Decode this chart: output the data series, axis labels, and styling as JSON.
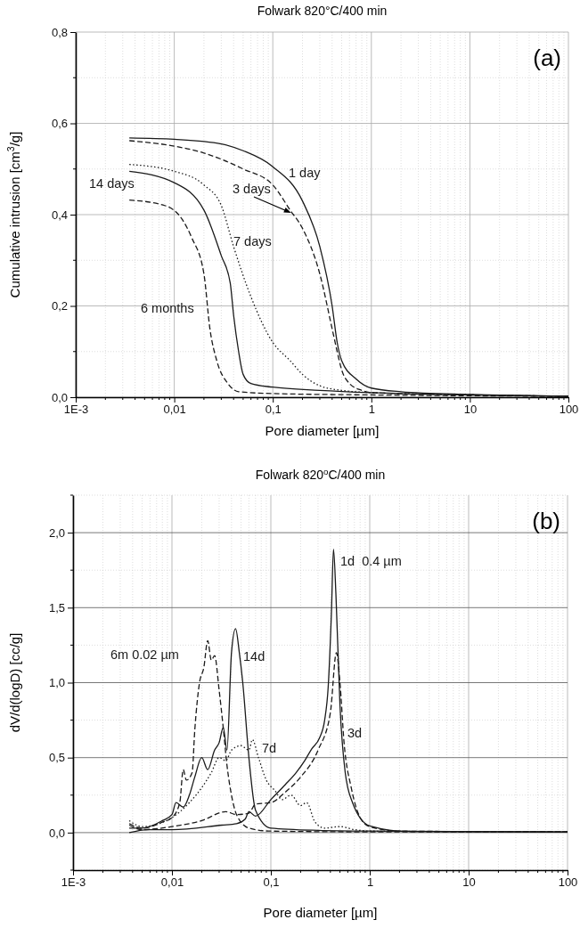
{
  "chart_data": [
    {
      "type": "line",
      "title": "Folwark 820°C/400 min",
      "xlabel": "Pore diameter [µm]",
      "ylabel": "Cumulative intrusion [cm$^{3}$/g]",
      "log": "x",
      "grid": true,
      "xlim": [
        0.001,
        100
      ],
      "ylim": [
        0,
        0.8
      ],
      "xticks": [
        {
          "value": 0.001,
          "label": "1E-3"
        },
        {
          "value": 0.01,
          "label": "0,01"
        },
        {
          "value": 0.1,
          "label": "0,1"
        },
        1,
        10,
        100
      ],
      "yticks": [
        {
          "value": 0,
          "label": "0,0"
        },
        {
          "value": 0.2,
          "label": "0,2"
        },
        {
          "value": 0.4,
          "label": "0,4"
        },
        {
          "value": 0.6,
          "label": "0,6"
        },
        {
          "value": 0.8,
          "label": "0,8"
        }
      ],
      "annotations": [
        "(a)"
      ],
      "series": [
        {
          "name": "1 day",
          "color": "#1a1a1a",
          "line_style": "solid",
          "x": [
            0.0035,
            0.01,
            0.03,
            0.05,
            0.1,
            0.2,
            0.3,
            0.4,
            0.45,
            0.5,
            0.7,
            1,
            2,
            10,
            100
          ],
          "values": [
            0.568,
            0.565,
            0.555,
            0.54,
            0.505,
            0.43,
            0.33,
            0.2,
            0.12,
            0.08,
            0.04,
            0.02,
            0.012,
            0.006,
            0.002
          ]
        },
        {
          "name": "3 days",
          "color": "#1a1a1a",
          "line_style": "dashed",
          "x": [
            0.0035,
            0.01,
            0.02,
            0.05,
            0.1,
            0.15,
            0.2,
            0.3,
            0.4,
            0.45,
            0.5,
            0.6,
            0.8,
            1,
            10,
            100
          ],
          "values": [
            0.562,
            0.55,
            0.535,
            0.5,
            0.465,
            0.41,
            0.37,
            0.27,
            0.15,
            0.1,
            0.06,
            0.03,
            0.015,
            0.01,
            0.005,
            0.002
          ]
        },
        {
          "name": "7 days",
          "color": "#1a1a1a",
          "line_style": "dotted",
          "x": [
            0.0035,
            0.01,
            0.02,
            0.03,
            0.04,
            0.06,
            0.1,
            0.15,
            0.2,
            0.3,
            0.5,
            1,
            10,
            100
          ],
          "values": [
            0.51,
            0.495,
            0.465,
            0.42,
            0.33,
            0.22,
            0.12,
            0.08,
            0.05,
            0.025,
            0.015,
            0.01,
            0.005,
            0.002
          ]
        },
        {
          "name": "14 days",
          "color": "#1a1a1a",
          "line_style": "solid",
          "x": [
            0.0035,
            0.01,
            0.02,
            0.03,
            0.037,
            0.04,
            0.045,
            0.05,
            0.06,
            0.1,
            0.3,
            1,
            10,
            100
          ],
          "values": [
            0.495,
            0.47,
            0.41,
            0.31,
            0.25,
            0.18,
            0.1,
            0.05,
            0.03,
            0.022,
            0.015,
            0.01,
            0.005,
            0.002
          ]
        },
        {
          "name": "6 months",
          "color": "#1a1a1a",
          "line_style": "dashed",
          "x": [
            0.0035,
            0.008,
            0.012,
            0.015,
            0.02,
            0.023,
            0.027,
            0.035,
            0.045,
            0.1,
            1,
            100
          ],
          "values": [
            0.432,
            0.42,
            0.39,
            0.35,
            0.27,
            0.15,
            0.08,
            0.03,
            0.012,
            0.008,
            0.005,
            0.002
          ]
        }
      ]
    },
    {
      "type": "line",
      "title": "Folwark 820$^{o}$C/400 min",
      "xlabel": "Pore diameter [µm]",
      "ylabel": "dV/d(logD) [cc/g]",
      "log": "x",
      "grid": true,
      "xlim": [
        0.001,
        100
      ],
      "ylim": [
        -0.25,
        2.25
      ],
      "xticks": [
        {
          "value": 0.001,
          "label": "1E-3"
        },
        {
          "value": 0.01,
          "label": "0,01"
        },
        {
          "value": 0.1,
          "label": "0,1"
        },
        1,
        10,
        100
      ],
      "yticks": [
        {
          "value": 0,
          "label": "0,0"
        },
        {
          "value": 0.5,
          "label": "0,5"
        },
        {
          "value": 1,
          "label": "1,0"
        },
        {
          "value": 1.5,
          "label": "1,5"
        },
        {
          "value": 2,
          "label": "2,0"
        }
      ],
      "annotations": [
        "(b)"
      ],
      "series": [
        {
          "name": "1d  0.4 µm",
          "color": "#1a1a1a",
          "line_style": "solid",
          "x": [
            0.0037,
            0.0057,
            0.01,
            0.032,
            0.045,
            0.055,
            0.06,
            0.07,
            0.1,
            0.14,
            0.18,
            0.22,
            0.26,
            0.31,
            0.35,
            0.38,
            0.41,
            0.43,
            0.455,
            0.5,
            0.565,
            0.67,
            1,
            2.5,
            100
          ],
          "values": [
            0,
            0.02,
            0.02,
            0.05,
            0.06,
            0.09,
            0.14,
            0.11,
            0.22,
            0.32,
            0.4,
            0.48,
            0.56,
            0.63,
            0.75,
            0.97,
            1.47,
            1.89,
            1.59,
            0.85,
            0.4,
            0.2,
            0.045,
            0.007,
            0.005
          ]
        },
        {
          "name": "3d",
          "color": "#1a1a1a",
          "line_style": "dashed",
          "x": [
            0.0037,
            0.005,
            0.01,
            0.02,
            0.035,
            0.045,
            0.06,
            0.07,
            0.1,
            0.14,
            0.2,
            0.3,
            0.4,
            0.46,
            0.5,
            0.55,
            0.65,
            0.8,
            1,
            2,
            100
          ],
          "values": [
            0.05,
            0.02,
            0.04,
            0.08,
            0.14,
            0.12,
            0.13,
            0.19,
            0.2,
            0.27,
            0.37,
            0.55,
            0.8,
            1.2,
            1.0,
            0.6,
            0.3,
            0.1,
            0.04,
            0.01,
            0.005
          ]
        },
        {
          "name": "14d",
          "color": "#1a1a1a",
          "line_style": "solid",
          "x": [
            0.0037,
            0.005,
            0.008,
            0.01,
            0.011,
            0.013,
            0.015,
            0.017,
            0.02,
            0.023,
            0.027,
            0.03,
            0.033,
            0.036,
            0.04,
            0.044,
            0.048,
            0.052,
            0.06,
            0.07,
            0.1,
            0.3,
            1,
            100
          ],
          "values": [
            0.03,
            0.03,
            0.08,
            0.12,
            0.2,
            0.17,
            0.25,
            0.37,
            0.5,
            0.42,
            0.55,
            0.6,
            0.7,
            0.55,
            1.2,
            1.36,
            1.2,
            1.0,
            0.5,
            0.15,
            0.03,
            0.015,
            0.01,
            0.005
          ]
        },
        {
          "name": "7d",
          "color": "#1a1a1a",
          "line_style": "dotted",
          "x": [
            0.0037,
            0.005,
            0.01,
            0.015,
            0.02,
            0.025,
            0.03,
            0.035,
            0.04,
            0.05,
            0.06,
            0.065,
            0.075,
            0.09,
            0.11,
            0.13,
            0.16,
            0.2,
            0.23,
            0.28,
            0.35,
            0.5,
            0.7,
            1,
            100
          ],
          "values": [
            0.08,
            0.04,
            0.1,
            0.2,
            0.3,
            0.4,
            0.5,
            0.48,
            0.55,
            0.58,
            0.55,
            0.62,
            0.5,
            0.35,
            0.28,
            0.22,
            0.25,
            0.18,
            0.2,
            0.07,
            0.03,
            0.04,
            0.02,
            0.01,
            0.005
          ]
        },
        {
          "name": "6m 0.02 µm",
          "color": "#1a1a1a",
          "line_style": "dashed",
          "x": [
            0.0037,
            0.005,
            0.008,
            0.01,
            0.012,
            0.013,
            0.014,
            0.016,
            0.017,
            0.019,
            0.021,
            0.023,
            0.025,
            0.027,
            0.03,
            0.033,
            0.036,
            0.04,
            0.045,
            0.06,
            0.1,
            1,
            100
          ],
          "values": [
            0.06,
            0.03,
            0.07,
            0.1,
            0.2,
            0.42,
            0.35,
            0.4,
            0.68,
            1.0,
            1.1,
            1.28,
            1.15,
            1.18,
            0.95,
            0.7,
            0.45,
            0.25,
            0.12,
            0.03,
            0.01,
            0.005,
            0.005
          ]
        }
      ]
    }
  ]
}
